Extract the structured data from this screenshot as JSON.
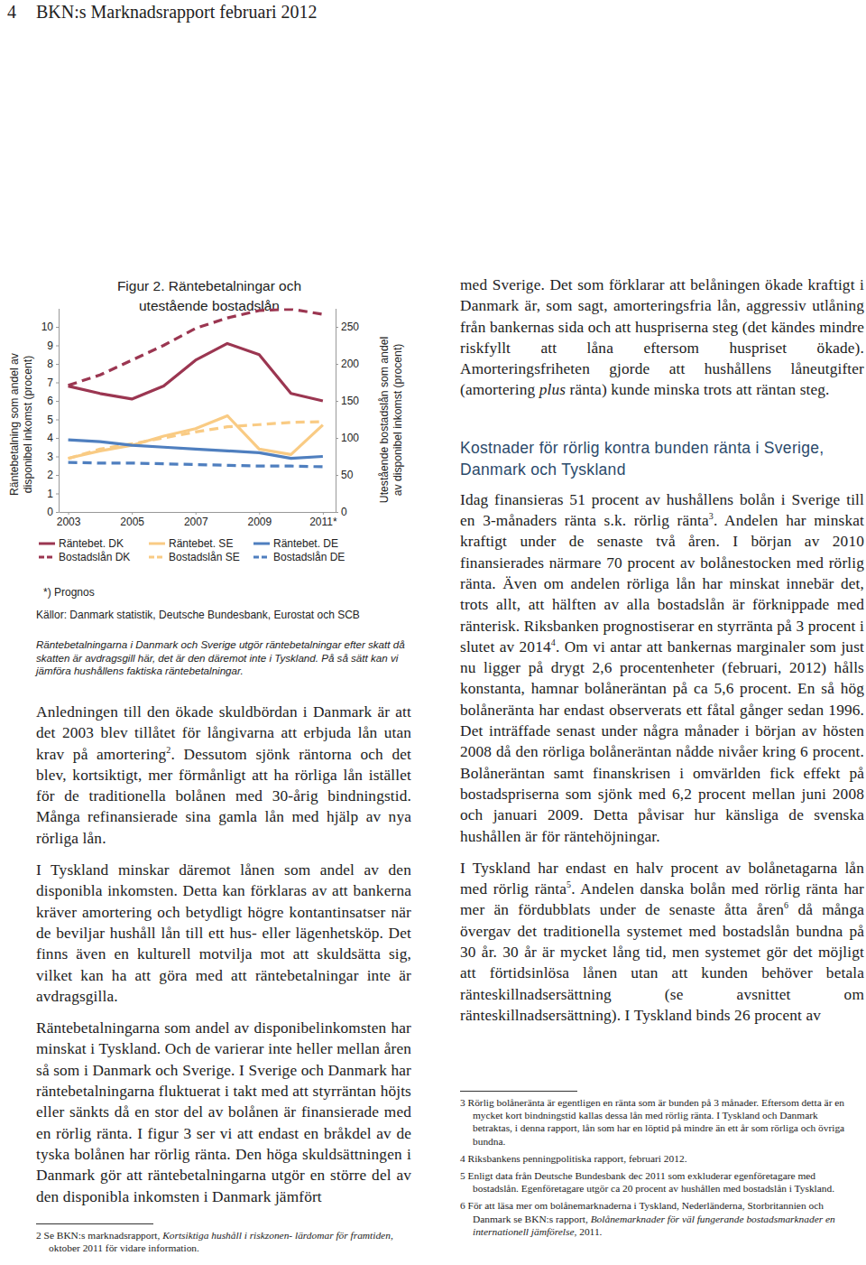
{
  "header": {
    "page_number": 4,
    "title": "BKN:s Marknadsrapport februari 2012"
  },
  "chart_data": {
    "type": "line",
    "title": [
      "Figur 2. Räntebetalningar och",
      "utestående bostadslån"
    ],
    "ylabel": [
      "Räntebetalning som andel av",
      "disponibel inkomst (procent)"
    ],
    "y2label": [
      "Utestående bostadslån som andel",
      "av disponibel inkomst (procent)"
    ],
    "x": [
      2003,
      2004,
      2005,
      2006,
      2007,
      2008,
      2009,
      2010,
      2011
    ],
    "xlim": [
      2002.7,
      2011.4
    ],
    "xticks": [
      2003,
      2005,
      2007,
      2009,
      {
        "value": 2011,
        "label": "2011*"
      }
    ],
    "ylim": [
      0,
      11
    ],
    "yticks": [
      0,
      1,
      2,
      3,
      4,
      5,
      6,
      7,
      8,
      9,
      10
    ],
    "y2lim": [
      0,
      275
    ],
    "y2ticks": [
      0,
      50,
      100,
      150,
      200,
      250
    ],
    "grid": false,
    "legend": "bottom",
    "series": [
      {
        "name": "Räntebet. DK",
        "color": "#9b3651",
        "line_style": "solid",
        "values": [
          6.8,
          6.4,
          6.1,
          6.8,
          8.2,
          9.1,
          8.5,
          6.4,
          6.0
        ]
      },
      {
        "name": "Bostadslån DK",
        "color": "#9b3651",
        "line_style": "dashed",
        "axis": "y2",
        "values": [
          171,
          185,
          205,
          225,
          248,
          262,
          272,
          274,
          267
        ]
      },
      {
        "name": "Räntebet. SE",
        "color": "#f9cb84",
        "line_style": "solid",
        "values": [
          2.9,
          3.3,
          3.6,
          4.1,
          4.5,
          5.2,
          3.4,
          3.1,
          4.7
        ]
      },
      {
        "name": "Bostadslån SE",
        "color": "#f9cb84",
        "line_style": "dashed",
        "axis": "y2",
        "values": [
          72,
          85,
          92,
          100,
          108,
          115,
          118,
          121,
          122
        ]
      },
      {
        "name": "Räntebet. DE",
        "color": "#4f7fbf",
        "line_style": "solid",
        "values": [
          3.9,
          3.8,
          3.6,
          3.5,
          3.4,
          3.3,
          3.2,
          2.9,
          3.0
        ]
      },
      {
        "name": "Bostadslån DE",
        "color": "#4f7fbf",
        "line_style": "dashed",
        "axis": "y2",
        "values": [
          67,
          66,
          66,
          65,
          64,
          63,
          62,
          62,
          61
        ]
      }
    ]
  },
  "figure_notes": {
    "footnote": "*) Prognos",
    "source": "Källor: Danmark statistik, Deutsche Bundesbank, Eurostat och SCB",
    "note": "Räntebetalningarna i Danmark och Sverige utgör räntebetalningar efter skatt då skatten är avdragsgill här, det är den däremot inte i Tyskland. På så sätt kan vi jämföra hushållens faktiska räntebetalningar."
  },
  "left_column": {
    "paragraphs": [
      [
        "Anledningen till den ökade skuldbördan i Danmark är att det 2003 blev tillåtet för långivarna att erbjuda lån utan krav på amortering",
        {
          "sup": "2"
        },
        ". Dessutom sjönk räntorna och det blev, kortsiktigt, mer förmånligt att ha rörliga lån istället för de traditionella bolånen med 30-årig bindningstid. Många refinansierade sina gamla lån med hjälp av nya rörliga lån."
      ],
      [
        "I Tyskland minskar däremot lånen som andel av den disponibla inkomsten. Detta kan förklaras av att bankerna kräver amortering och betydligt högre kontantinsatser när de beviljar hushåll lån till ett hus- eller lägenhetsköp. Det finns även en kulturell motvilja mot att skuldsätta sig, vilket kan ha att göra med att räntebetalningar inte är avdragsgilla."
      ],
      [
        "Räntebetalningarna som andel av disponibelinkomsten har minskat i Tyskland. Och de varierar inte heller mellan åren så som i Danmark och Sverige. I Sverige och Danmark har räntebetalningarna fluktuerat i takt med att styrräntan höjts eller sänkts då en stor del av bolånen är finansierade med en rörlig ränta. I figur 3 ser vi att endast en bråkdel av de tyska bolånen har rörlig ränta. Den höga skuldsättningen i Danmark gör att räntebetalningarna utgör en större del av den disponibla inkomsten i Danmark jämfört"
      ]
    ],
    "footnotes": [
      [
        "2 Se BKN:s marknadsrapport, ",
        {
          "em": "Kortsiktiga hushåll i riskzonen- lärdomar för framtiden"
        },
        ", oktober 2011 för vidare information."
      ]
    ]
  },
  "right_column": {
    "paragraphs_before": [
      [
        "med Sverige. Det som förklarar att belåningen ökade kraftigt i Danmark är, som sagt, amorteringsfria lån, aggressiv utlåning från bankernas sida och att huspriserna steg (det kändes mindre riskfyllt att låna eftersom huspriset ökade). Amorteringsfriheten gjorde att hushållens låneutgifter (amortering ",
        {
          "em": "plus"
        },
        " ränta) kunde minska trots att räntan steg."
      ]
    ],
    "heading": "Kostnader för rörlig kontra bunden ränta i Sverige, Danmark och Tyskland",
    "paragraphs": [
      [
        "Idag finansieras 51 procent av hushållens bolån i Sverige till en 3-månaders ränta s.k. rörlig ränta",
        {
          "sup": "3"
        },
        ". Andelen har minskat kraftigt under de senaste två åren. I början av 2010 finansierades närmare 70 procent av bolånestocken med rörlig ränta. Även om andelen rörliga lån har minskat innebär det, trots allt, att hälften av alla bostadslån är förknippade med ränterisk. Riksbanken prognostiserar en styrränta på 3 procent i slutet av 2014",
        {
          "sup": "4"
        },
        ". Om vi antar att bankernas marginaler som just nu ligger på drygt 2,6 procentenheter (februari, 2012) hålls konstanta, hamnar bolåneräntan på ca 5,6 procent. En så hög bolåneränta har endast observerats ett fåtal gånger sedan 1996. Det inträffade senast under några månader i början av hösten 2008 då den rörliga bolåneräntan nådde nivåer kring 6 procent. Bolåneräntan samt finanskrisen i omvärlden fick effekt på bostadspriserna som sjönk med 6,2 procent mellan juni 2008 och januari 2009. Detta påvisar hur känsliga de svenska hushållen är för räntehöjningar."
      ],
      [
        "I Tyskland har endast en halv procent av bolånetagarna lån med rörlig ränta",
        {
          "sup": "5"
        },
        ". Andelen danska bolån med rörlig ränta har mer än fördubblats under de senaste åtta åren",
        {
          "sup": "6"
        },
        " då många övergav det traditionella systemet med bostadslån bundna på 30 år. 30 år är mycket lång tid, men systemet gör det möjligt att förtidsinlösa lånen utan att kunden behöver betala ränteskillnadsersättning (se avsnittet om ränteskillnadsersättning). I Tyskland binds 26 procent av"
      ]
    ],
    "footnotes": [
      [
        "3 Rörlig bolåneränta är egentligen en ränta som är bunden på 3 månader. Eftersom detta är en mycket kort bindningstid kallas dessa lån med rörlig ränta. I Tyskland och Danmark betraktas, i denna rapport, lån som har en löptid på mindre än ett år som rörliga och övriga bundna."
      ],
      [
        "4 Riksbankens penningpolitiska rapport, februari 2012."
      ],
      [
        "5 Enligt data från Deutsche Bundesbank dec 2011 som exkluderar egenföretagare med bostadslån. Egenföretagare utgör ca 20 procent av hushållen med bostadslån i Tyskland."
      ],
      [
        "6 För att läsa mer om bolånemarknaderna i Tyskland, Nederländerna, Storbritannien och Danmark se BKN:s rapport, ",
        {
          "em": "Bolånemarknader för väl fungerande bostadsmarknader en internationell jämförelse"
        },
        ", 2011."
      ]
    ]
  }
}
